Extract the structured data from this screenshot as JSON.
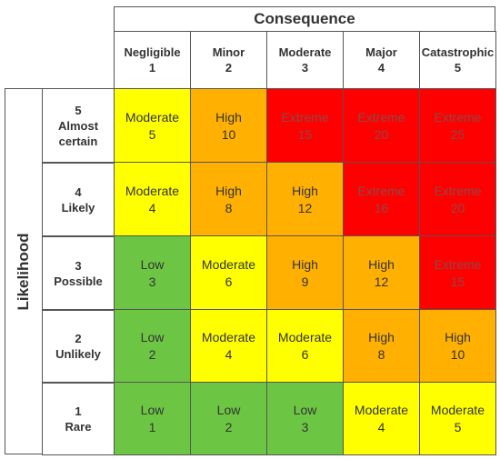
{
  "header": {
    "consequence_label": "Consequence",
    "likelihood_label": "Likelihood"
  },
  "columns": [
    {
      "name": "Negligible",
      "num": "1"
    },
    {
      "name": "Minor",
      "num": "2"
    },
    {
      "name": "Moderate",
      "num": "3"
    },
    {
      "name": "Major",
      "num": "4"
    },
    {
      "name": "Catastrophic",
      "num": "5"
    }
  ],
  "rows": [
    {
      "num": "5",
      "name": "Almost certain",
      "cells": [
        {
          "label": "Moderate",
          "score": "5",
          "level": "moderate"
        },
        {
          "label": "High",
          "score": "10",
          "level": "high"
        },
        {
          "label": "Extreme",
          "score": "15",
          "level": "extreme"
        },
        {
          "label": "Extreme",
          "score": "20",
          "level": "extreme"
        },
        {
          "label": "Extreme",
          "score": "25",
          "level": "extreme"
        }
      ]
    },
    {
      "num": "4",
      "name": "Likely",
      "cells": [
        {
          "label": "Moderate",
          "score": "4",
          "level": "moderate"
        },
        {
          "label": "High",
          "score": "8",
          "level": "high"
        },
        {
          "label": "High",
          "score": "12",
          "level": "high"
        },
        {
          "label": "Extreme",
          "score": "16",
          "level": "extreme"
        },
        {
          "label": "Extreme",
          "score": "20",
          "level": "extreme"
        }
      ]
    },
    {
      "num": "3",
      "name": "Possible",
      "cells": [
        {
          "label": "Low",
          "score": "3",
          "level": "low"
        },
        {
          "label": "Moderate",
          "score": "6",
          "level": "moderate"
        },
        {
          "label": "High",
          "score": "9",
          "level": "high"
        },
        {
          "label": "High",
          "score": "12",
          "level": "high"
        },
        {
          "label": "Extreme",
          "score": "15",
          "level": "extreme"
        }
      ]
    },
    {
      "num": "2",
      "name": "Unlikely",
      "cells": [
        {
          "label": "Low",
          "score": "2",
          "level": "low"
        },
        {
          "label": "Moderate",
          "score": "4",
          "level": "moderate"
        },
        {
          "label": "Moderate",
          "score": "6",
          "level": "moderate"
        },
        {
          "label": "High",
          "score": "8",
          "level": "high"
        },
        {
          "label": "High",
          "score": "10",
          "level": "high"
        }
      ]
    },
    {
      "num": "1",
      "name": "Rare",
      "cells": [
        {
          "label": "Low",
          "score": "1",
          "level": "low"
        },
        {
          "label": "Low",
          "score": "2",
          "level": "low"
        },
        {
          "label": "Low",
          "score": "3",
          "level": "low"
        },
        {
          "label": "Moderate",
          "score": "4",
          "level": "moderate"
        },
        {
          "label": "Moderate",
          "score": "5",
          "level": "moderate"
        }
      ]
    }
  ],
  "colors": {
    "low": "#6cc644",
    "moderate": "#ffff00",
    "high": "#ffb000",
    "extreme": "#ff0000"
  }
}
